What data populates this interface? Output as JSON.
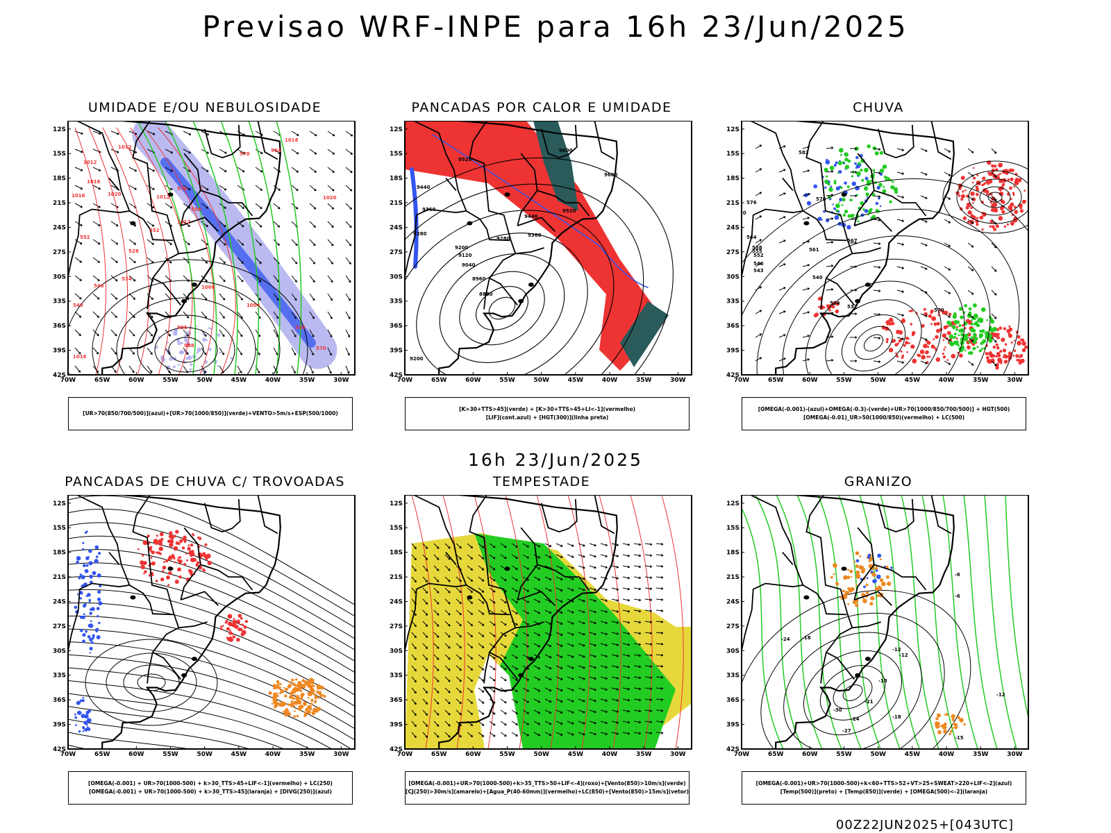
{
  "title": "Previsao WRF-INPE  para 16h 23/Jun/2025",
  "mid_time": "16h 23/Jun/2025",
  "footer": "00Z22JUN2025+[043UTC]",
  "axes": {
    "lat_labels": [
      "12S",
      "15S",
      "18S",
      "21S",
      "24S",
      "27S",
      "30S",
      "33S",
      "36S",
      "39S",
      "42S"
    ],
    "lon_labels": [
      "70W",
      "65W",
      "60W",
      "55W",
      "50W",
      "45W",
      "40W",
      "35W",
      "30W"
    ]
  },
  "colors": {
    "blue": "#3355ee",
    "green": "#22cc22",
    "red": "#ee3333",
    "teal": "#2a5a5a",
    "yellow": "#e6d83a",
    "orange": "#ee8822",
    "lavender": "#a9a9ee"
  },
  "panels": [
    {
      "title": "UMIDADE E/OU NEBULOSIDADE",
      "legend": [
        "[UR>70(850/700/500)](azul)+[UR>70(1000/850)](verde)+VENTO>5m/s+ESP(500/1000)"
      ],
      "labels": [
        "1012",
        "1012",
        "1016",
        "1020",
        "1016",
        "1012",
        "1012",
        "1008",
        "1004",
        "996",
        "988",
        "1016",
        "1018",
        "1020",
        "564",
        "570",
        "576",
        "558",
        "552",
        "546",
        "540",
        "534",
        "528",
        "552",
        "558",
        "570"
      ]
    },
    {
      "title": "PANCADAS POR CALOR E UMIDADE",
      "legend": [
        "[K>30+TTS>45](verde)  +  [K>30+TTS>45+LI<-1](vermelho)",
        "[LIF](cont.azul)  +  [HGT(300)](linha preta)"
      ],
      "labels": [
        "9600",
        "9600",
        "9520",
        "9440",
        "9360",
        "9280",
        "9200",
        "9120",
        "9040",
        "8960",
        "8880",
        "9200",
        "9520",
        "9440",
        "9360",
        "9280"
      ]
    },
    {
      "title": "CHUVA",
      "legend": [
        "[OMEGA(-0.001)-(azul)+OMEGA(-0.3)-(verde)+UR>70(1000/850/700/500)]  +  HGT(500)",
        "[OMEGA(-0.01)_UR>50(1000/850)(vermelho)  +  LC(500)"
      ],
      "labels": [
        "582",
        "576",
        "570",
        "564",
        "558",
        "552",
        "546",
        "543",
        "540",
        "534",
        "531",
        "567",
        "570",
        "576",
        "561",
        "555"
      ]
    },
    {
      "title": "PANCADAS DE CHUVA C/ TROVOADAS",
      "legend": [
        "[OMEGA(-0.001)  +  UR>70(1000-500)  +  k>30_TTS>45+LIF<-1](vermelho)  +  LC(250)",
        "[OMEGA(-0.001)  +  UR>70(1000-500)  +  k>30_TTS>45](laranja)  +  [DIVG(250)](azul)"
      ],
      "labels": []
    },
    {
      "title": "TEMPESTADE",
      "legend": [
        "[OMEGA(-0.001)+UR>70(1000-500)+k>35_TTS>50+LIF<-4](roxo)+[Vento(850)>10m/s](verde)",
        "[CJ(250)>30m/s](amarelo)+[Agua_P(40-60mm)](vermelho)+LC(850)+[Vento(850)>15m/s](vetor)"
      ],
      "labels": []
    },
    {
      "title": "GRANIZO",
      "legend": [
        "[OMEGA(-0.001)+UR>70(1000-500)+k<60+TTS>52+VT>25+SWEAT>220+LIF<-2](azul)",
        "[Temp(500)](preto)  +  [Temp(850)](verde)  +  [OMEGA(500)<-2](laranja)"
      ],
      "labels": [
        "-24",
        "-18",
        "-12",
        "-6",
        "-30",
        "-27",
        "-24",
        "-21",
        "-18",
        "-12",
        "-15",
        "-18",
        "-12",
        "-6"
      ]
    }
  ]
}
